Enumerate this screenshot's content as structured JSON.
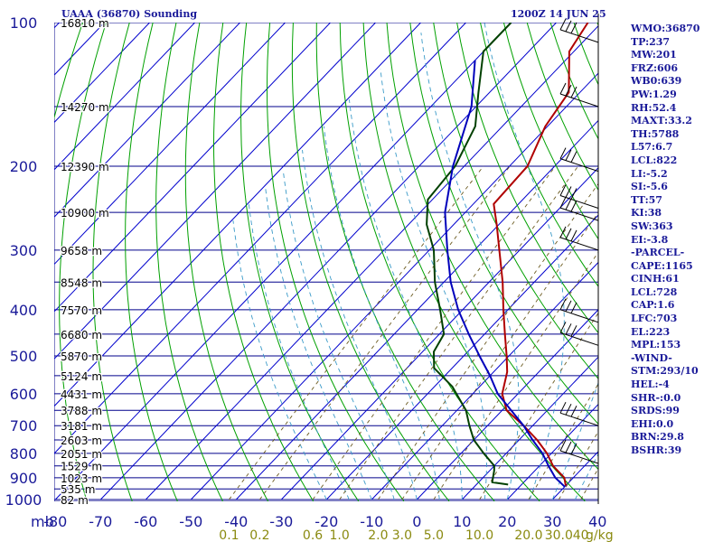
{
  "header": {
    "station": "UAAA (36870) Sounding",
    "datetime": "1200Z 14 JUN 25"
  },
  "indices": [
    "WMO:36870",
    "TP:237",
    "MW:201",
    "FRZ:606",
    "WB0:639",
    "PW:1.29",
    "RH:52.4",
    "MAXT:33.2",
    "TH:5788",
    "L57:6.7",
    "LCL:822",
    "LI:-5.2",
    "SI:-5.6",
    "TT:57",
    "KI:38",
    "SW:363",
    "EI:-3.8",
    "-PARCEL-",
    "CAPE:1165",
    "CINH:61",
    "LCL:728",
    "CAP:1.6",
    "LFC:703",
    "EL:223",
    "MPL:153",
    "-WIND-",
    "STM:293/10",
    "HEL:-4",
    "SHR-:0.0",
    "SRDS:99",
    "EHI:0.0",
    "BRN:29.8",
    "BSHR:39"
  ],
  "chart_data": {
    "type": "line",
    "chart_kind": "Skew-T log-P sounding",
    "y_axis_label": "mb",
    "pressure_ticks": [
      100,
      200,
      300,
      400,
      500,
      600,
      700,
      800,
      900,
      1000
    ],
    "temperature_ticks": [
      -80,
      -70,
      -60,
      -50,
      -40,
      -30,
      -20,
      -10,
      0,
      10,
      20,
      30,
      40
    ],
    "mixing_ratio_labels": [
      "0.1",
      "0.2",
      "0.6",
      "1.0",
      "2.0",
      "3.0",
      "5.0",
      "10.0",
      "20.0",
      "30.0",
      "40"
    ],
    "mixing_ratio_unit": "g/kg",
    "height_labels": [
      {
        "p": 100,
        "text": "16810 m"
      },
      {
        "p": 150,
        "text": "14270 m"
      },
      {
        "p": 200,
        "text": "12390 m"
      },
      {
        "p": 250,
        "text": "10900 m"
      },
      {
        "p": 300,
        "text": "9658 m"
      },
      {
        "p": 350,
        "text": "8548 m"
      },
      {
        "p": 400,
        "text": "7570 m"
      },
      {
        "p": 450,
        "text": "6680 m"
      },
      {
        "p": 500,
        "text": "5870 m"
      },
      {
        "p": 550,
        "text": "5124 m"
      },
      {
        "p": 600,
        "text": "4431 m"
      },
      {
        "p": 650,
        "text": "3788 m"
      },
      {
        "p": 700,
        "text": "3181 m"
      },
      {
        "p": 750,
        "text": "2603 m"
      },
      {
        "p": 800,
        "text": "2051 m"
      },
      {
        "p": 850,
        "text": "1529 m"
      },
      {
        "p": 900,
        "text": "1023 m"
      },
      {
        "p": 950,
        "text": "535 m"
      },
      {
        "p": 1000,
        "text": "82 m"
      }
    ],
    "series": [
      {
        "points": [
          [
            100,
            -63
          ],
          [
            115,
            -61
          ],
          [
            140,
            -52.5
          ],
          [
            165,
            -50.5
          ],
          [
            200,
            -46
          ],
          [
            240,
            -45.5
          ],
          [
            265,
            -40.5
          ],
          [
            300,
            -34.5
          ],
          [
            350,
            -27
          ],
          [
            400,
            -21
          ],
          [
            450,
            -15.5
          ],
          [
            500,
            -10.5
          ],
          [
            540,
            -7
          ],
          [
            600,
            -3.5
          ],
          [
            650,
            1
          ],
          [
            700,
            8
          ],
          [
            750,
            14
          ],
          [
            800,
            19
          ],
          [
            850,
            23
          ],
          [
            900,
            28
          ],
          [
            935,
            30
          ]
        ],
        "color": "#b00000"
      },
      {
        "points": [
          [
            100,
            -80
          ],
          [
            115,
            -80
          ],
          [
            140,
            -72.5
          ],
          [
            165,
            -66
          ],
          [
            200,
            -62
          ],
          [
            235,
            -61
          ],
          [
            265,
            -56
          ],
          [
            300,
            -49
          ],
          [
            350,
            -42
          ],
          [
            400,
            -35
          ],
          [
            450,
            -29
          ],
          [
            490,
            -27.5
          ],
          [
            530,
            -24
          ],
          [
            580,
            -16
          ],
          [
            650,
            -8
          ],
          [
            700,
            -4
          ],
          [
            750,
            0
          ],
          [
            800,
            5
          ],
          [
            850,
            10
          ],
          [
            870,
            11
          ],
          [
            920,
            13
          ],
          [
            930,
            17
          ]
        ],
        "color": "#004000"
      },
      {
        "points": [
          [
            120,
            -80
          ],
          [
            150,
            -71
          ],
          [
            200,
            -62.5
          ],
          [
            250,
            -54.5
          ],
          [
            300,
            -46
          ],
          [
            350,
            -38.5
          ],
          [
            400,
            -31
          ],
          [
            450,
            -23.5
          ],
          [
            500,
            -16.5
          ],
          [
            550,
            -10
          ],
          [
            600,
            -4.5
          ],
          [
            650,
            2
          ],
          [
            700,
            8
          ],
          [
            750,
            13
          ],
          [
            800,
            18
          ],
          [
            850,
            22
          ],
          [
            900,
            26
          ],
          [
            940,
            30
          ]
        ],
        "color": "#0000bb"
      }
    ],
    "wind_barbs_p": [
      110,
      150,
      205,
      245,
      260,
      300,
      425,
      475,
      700,
      840
    ],
    "grid": true,
    "style": {
      "isobar_color": "#00008b",
      "isotherm_color": "#0000cd",
      "dry_adiabat_color": "#00a000",
      "moist_adiabat_color": "#3a9ac8",
      "mixing_ratio_color": "#6b5a20",
      "axis_label_color": "#1a1a99",
      "mr_label_color": "#8a8a10"
    }
  }
}
